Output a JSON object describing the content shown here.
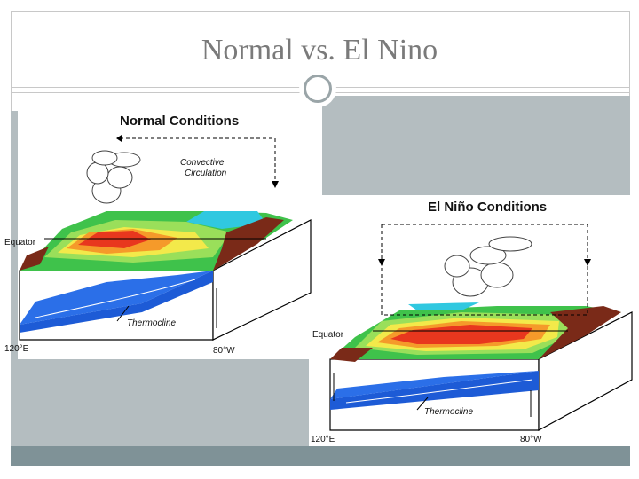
{
  "slide": {
    "title": "Normal vs. El Nino"
  },
  "normal": {
    "heading": "Normal Conditions",
    "circulation_line1": "Convective",
    "circulation_line2": "Circulation",
    "equator": "Equator",
    "thermocline": "Thermocline",
    "lon_west": "120°E",
    "lon_east": "80°W"
  },
  "elnino": {
    "heading": "El Niño Conditions",
    "equator": "Equator",
    "thermocline": "Thermocline",
    "lon_west": "120°E",
    "lon_east": "80°W"
  }
}
